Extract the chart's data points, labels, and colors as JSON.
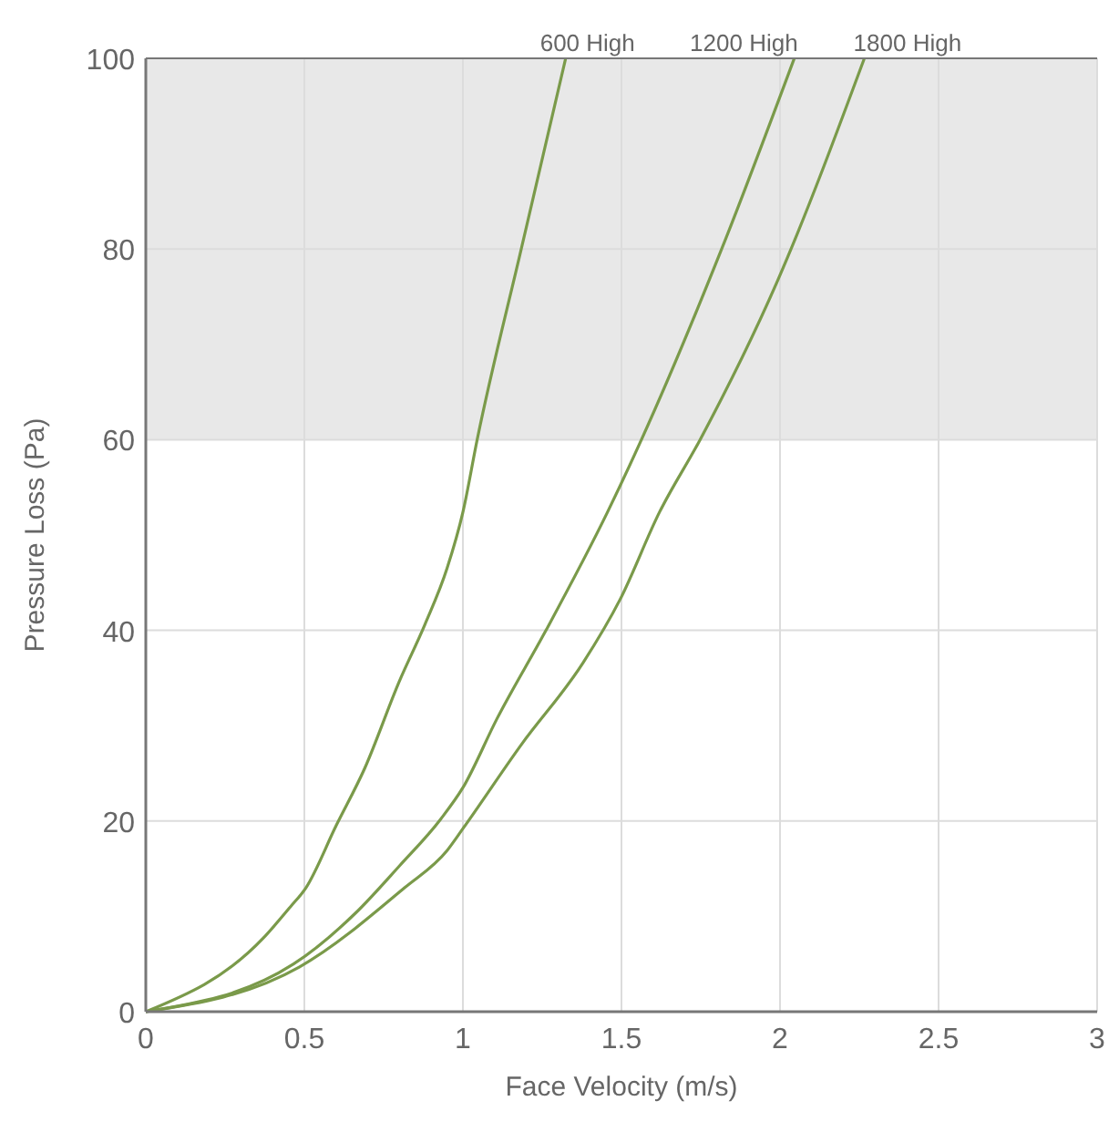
{
  "chart_data": {
    "type": "line",
    "xlabel": "Face Velocity (m/s)",
    "ylabel": "Pressure Loss (Pa)",
    "xlim": [
      0,
      3
    ],
    "ylim": [
      0,
      100
    ],
    "xticks": [
      0,
      0.5,
      1,
      1.5,
      2,
      2.5,
      3
    ],
    "yticks": [
      0,
      20,
      40,
      60,
      80,
      100
    ],
    "grid": true,
    "legend": false,
    "marker": "none",
    "line_style": "solid",
    "bands": [
      {
        "axis": "y",
        "from": 60,
        "to": 100,
        "color": "#e8e8e8"
      }
    ],
    "series": [
      {
        "name": "600 High",
        "color": "#7a9a4a",
        "x": [
          0,
          0.37,
          0.456,
          0.505,
          0.6,
          0.69,
          0.8,
          0.88,
          0.95,
          1.0,
          1.045,
          1.184,
          1.324
        ],
        "values": [
          0,
          7.7,
          11,
          13,
          19.5,
          25.5,
          34.7,
          40.6,
          46.5,
          52.4,
          60,
          80,
          100
        ]
      },
      {
        "name": "1200 High",
        "color": "#7a9a4a",
        "x": [
          0,
          0.466,
          0.66,
          0.8,
          0.93,
          1.0,
          1.107,
          1.262,
          1.456,
          1.563,
          1.816,
          2.045
        ],
        "values": [
          0,
          5,
          10.3,
          15.3,
          20.2,
          23.5,
          30.7,
          40,
          52.4,
          60,
          80,
          100
        ]
      },
      {
        "name": "1800 High",
        "color": "#7a9a4a",
        "x": [
          0,
          0.485,
          0.816,
          0.95,
          1.0,
          1.184,
          1.379,
          1.495,
          1.62,
          1.748,
          1.99,
          2.266
        ],
        "values": [
          0,
          4.7,
          13,
          16.9,
          19.2,
          28,
          36.6,
          43.2,
          52.4,
          60,
          76.5,
          100
        ]
      }
    ]
  }
}
